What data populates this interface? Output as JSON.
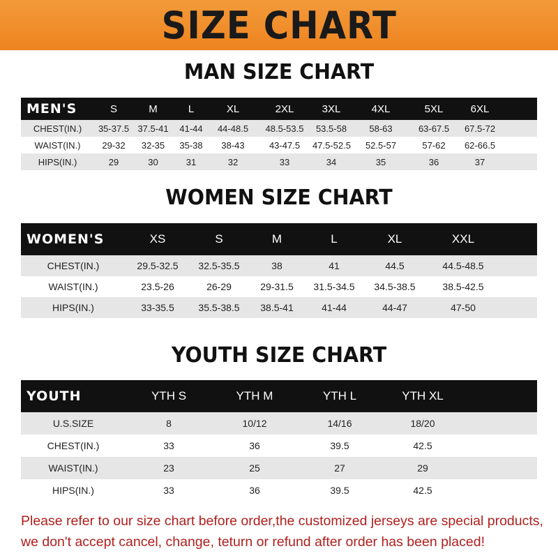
{
  "banner": {
    "title": "SIZE CHART",
    "color": "#ee8420"
  },
  "men": {
    "title": "MAN SIZE CHART",
    "header": [
      "MEN'S",
      "S",
      "M",
      "L",
      "XL",
      "2XL",
      "3XL",
      "4XL",
      "5XL",
      "6XL"
    ],
    "rows": [
      [
        "CHEST(IN.)",
        "35-37.5",
        "37.5-41",
        "41-44",
        "44-48.5",
        "48.5-53.5",
        "53.5-58",
        "58-63",
        "63-67.5",
        "67.5-72"
      ],
      [
        "WAIST(IN.)",
        "29-32",
        "32-35",
        "35-38",
        "38-43",
        "43-47.5",
        "47.5-52.5",
        "52.5-57",
        "57-62",
        "62-66.5"
      ],
      [
        "HIPS(IN.)",
        "29",
        "30",
        "31",
        "32",
        "33",
        "34",
        "35",
        "36",
        "37"
      ]
    ]
  },
  "women": {
    "title": "WOMEN SIZE CHART",
    "header": [
      "WOMEN'S",
      "XS",
      "S",
      "M",
      "L",
      "XL",
      "XXL"
    ],
    "rows": [
      [
        "CHEST(IN.)",
        "29.5-32.5",
        "32.5-35.5",
        "38",
        "41",
        "44.5",
        "44.5-48.5"
      ],
      [
        "WAIST(IN.)",
        "23.5-26",
        "26-29",
        "29-31.5",
        "31.5-34.5",
        "34.5-38.5",
        "38.5-42.5"
      ],
      [
        "HIPS(IN.)",
        "33-35.5",
        "35.5-38.5",
        "38.5-41",
        "41-44",
        "44-47",
        "47-50"
      ]
    ]
  },
  "youth": {
    "title": "YOUTH SIZE CHART",
    "header": [
      "YOUTH",
      "YTH S",
      "YTH M",
      "YTH L",
      "YTH XL"
    ],
    "rows": [
      [
        "U.S.SIZE",
        "8",
        "10/12",
        "14/16",
        "18/20"
      ],
      [
        "CHEST(IN.)",
        "33",
        "36",
        "39.5",
        "42.5"
      ],
      [
        "WAIST(IN.)",
        "23",
        "25",
        "27",
        "29"
      ],
      [
        "HIPS(IN.)",
        "33",
        "36",
        "39.5",
        "42.5"
      ]
    ]
  },
  "note": {
    "line1": "Please refer to our size chart before order,the customized jerseys are special products,",
    "line2": "we don't accept cancel, change, teturn or refund after order has been placed!",
    "color": "#b0201e"
  }
}
